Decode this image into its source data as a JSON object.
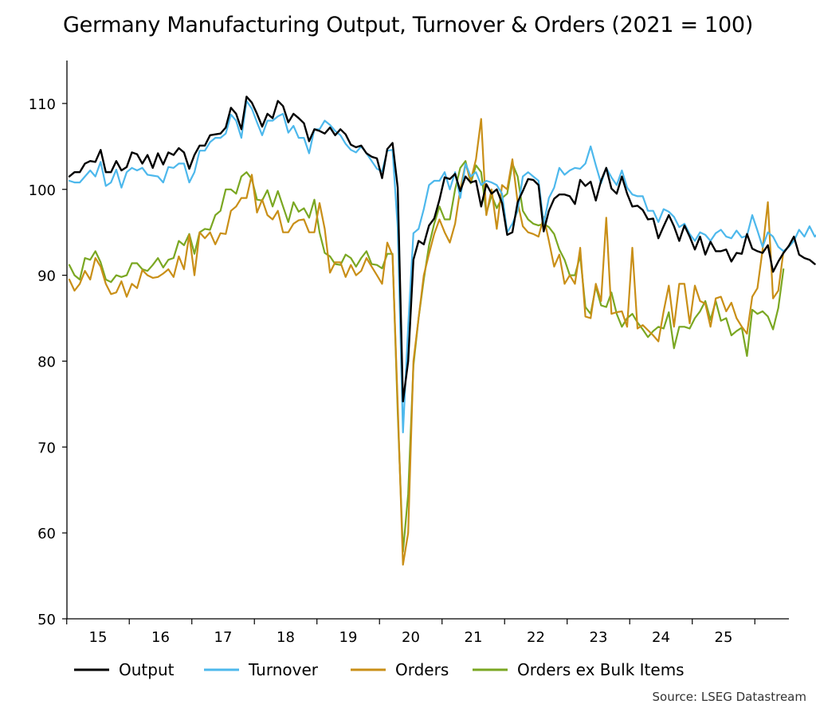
{
  "chart_data": {
    "type": "line",
    "title": "Germany Manufacturing Output, Turnover & Orders (2021 = 100)",
    "source": "Source: LSEG Datastream",
    "xlabel": "",
    "ylabel": "",
    "x_start": "2015-01",
    "frequency": "monthly",
    "ylim": [
      50,
      115
    ],
    "yticks": [
      50,
      60,
      70,
      80,
      90,
      100,
      110
    ],
    "xtick_labels": [
      "15",
      "16",
      "17",
      "18",
      "19",
      "20",
      "21",
      "22",
      "23",
      "24",
      "25"
    ],
    "grid": false,
    "legend_position": "bottom",
    "series": [
      {
        "name": "Output",
        "color": "#000000",
        "values": [
          101.5,
          102.0,
          102.0,
          103.0,
          103.3,
          103.2,
          104.6,
          102.0,
          102.0,
          103.3,
          102.2,
          102.6,
          104.3,
          104.1,
          103.0,
          104.0,
          102.5,
          104.2,
          102.9,
          104.3,
          104.0,
          104.8,
          104.3,
          102.4,
          104.0,
          105.1,
          105.1,
          106.3,
          106.4,
          106.5,
          107.2,
          109.5,
          108.8,
          107.0,
          110.8,
          110.1,
          108.8,
          107.3,
          108.8,
          108.3,
          110.3,
          109.7,
          107.8,
          108.8,
          108.3,
          107.7,
          105.6,
          107.0,
          106.8,
          106.5,
          107.2,
          106.3,
          107.0,
          106.4,
          105.2,
          104.9,
          105.1,
          104.2,
          103.8,
          103.6,
          101.3,
          104.7,
          105.4,
          100.2,
          75.3,
          80.0,
          91.8,
          94.0,
          93.6,
          95.8,
          96.6,
          98.8,
          101.4,
          101.2,
          101.8,
          99.8,
          101.5,
          100.8,
          101.0,
          98.0,
          100.6,
          99.5,
          100.0,
          98.4,
          94.7,
          95.0,
          98.5,
          99.8,
          101.2,
          101.1,
          100.5,
          95.1,
          97.5,
          98.9,
          99.4,
          99.4,
          99.2,
          98.3,
          101.1,
          100.4,
          100.9,
          98.7,
          101.0,
          102.5,
          100.1,
          99.5,
          101.5,
          99.5,
          98.0,
          98.1,
          97.6,
          96.5,
          96.6,
          94.3,
          95.7,
          97.0,
          95.7,
          94.0,
          95.8,
          94.5,
          93.0,
          94.5,
          92.4,
          93.9,
          92.8,
          92.8,
          93.0,
          91.6,
          92.6,
          92.5,
          94.8,
          93.1,
          92.8,
          92.6,
          93.5,
          90.4,
          91.6,
          92.6,
          93.4,
          94.5,
          92.4,
          92.0,
          91.8,
          91.3
        ]
      },
      {
        "name": "Turnover",
        "color": "#4db8ec",
        "values": [
          101.0,
          100.8,
          100.8,
          101.5,
          102.2,
          101.5,
          103.2,
          100.4,
          100.8,
          102.3,
          100.2,
          102.0,
          102.5,
          102.2,
          102.5,
          101.7,
          101.6,
          101.5,
          100.8,
          102.6,
          102.5,
          103.0,
          103.0,
          100.8,
          102.0,
          104.5,
          104.5,
          105.5,
          106.0,
          106.0,
          106.5,
          108.7,
          108.0,
          106.0,
          110.3,
          109.4,
          107.8,
          106.3,
          108.0,
          108.0,
          108.5,
          108.8,
          106.6,
          107.4,
          106.0,
          106.0,
          104.2,
          107.0,
          107.0,
          108.0,
          107.5,
          106.8,
          106.3,
          105.3,
          104.6,
          104.3,
          105.0,
          104.2,
          103.3,
          102.4,
          102.1,
          104.5,
          104.6,
          95.5,
          71.7,
          84.0,
          94.9,
          95.4,
          97.7,
          100.5,
          101.0,
          101.0,
          102.0,
          100.0,
          102.0,
          99.0,
          103.0,
          101.5,
          102.0,
          100.5,
          101.0,
          100.8,
          100.5,
          99.5,
          95.0,
          96.0,
          97.5,
          101.5,
          102.0,
          101.5,
          101.0,
          96.0,
          99.0,
          100.2,
          102.5,
          101.7,
          102.2,
          102.5,
          102.4,
          103.0,
          105.0,
          102.8,
          100.7,
          102.5,
          101.4,
          100.5,
          102.2,
          100.2,
          99.4,
          99.2,
          99.2,
          97.5,
          97.5,
          96.2,
          97.7,
          97.4,
          96.8,
          95.6,
          96.0,
          94.8,
          94.0,
          95.0,
          94.7,
          94.0,
          94.9,
          95.3,
          94.5,
          94.3,
          95.2,
          94.4,
          94.6,
          97.0,
          95.2,
          93.3,
          95.0,
          94.5,
          93.3,
          92.8,
          93.3,
          94.0,
          95.3,
          94.5,
          95.7,
          94.5,
          95.1
        ]
      },
      {
        "name": "Orders",
        "color": "#c98f17",
        "values": [
          89.5,
          88.2,
          89.0,
          90.5,
          89.5,
          92.0,
          91.0,
          89.0,
          87.8,
          88.0,
          89.3,
          87.5,
          89.0,
          88.5,
          90.6,
          90.0,
          89.7,
          89.8,
          90.2,
          90.7,
          89.8,
          92.2,
          90.7,
          94.7,
          90.0,
          95.0,
          94.3,
          95.0,
          93.6,
          94.9,
          94.8,
          97.5,
          98.0,
          99.0,
          99.0,
          101.7,
          97.3,
          98.8,
          97.0,
          96.5,
          97.5,
          95.0,
          95.0,
          96.0,
          96.4,
          96.5,
          95.0,
          95.0,
          98.4,
          95.4,
          90.3,
          91.5,
          91.5,
          89.8,
          91.2,
          90.0,
          90.5,
          92.0,
          91.0,
          90.0,
          89.0,
          93.8,
          92.3,
          75.0,
          56.3,
          60.0,
          80.0,
          85.0,
          90.0,
          92.5,
          94.8,
          96.5,
          95.0,
          93.8,
          96.0,
          100.0,
          103.0,
          101.0,
          103.5,
          108.2,
          97.0,
          100.0,
          95.4,
          100.5,
          100.0,
          103.5,
          98.5,
          95.7,
          95.0,
          94.8,
          94.5,
          96.8,
          94.0,
          91.0,
          92.4,
          89.0,
          90.0,
          89.0,
          93.2,
          85.2,
          85.0,
          89.0,
          87.0,
          96.7,
          85.5,
          85.7,
          85.8,
          84.0,
          93.2,
          83.8,
          84.2,
          83.6,
          83.0,
          82.3,
          85.8,
          88.8,
          84.0,
          89.0,
          89.0,
          84.4,
          88.8,
          87.0,
          86.7,
          84.0,
          87.3,
          87.5,
          85.8,
          86.8,
          85.0,
          84.0,
          83.2,
          87.5,
          88.5,
          93.0,
          98.5,
          87.3,
          88.2,
          92.8
        ]
      },
      {
        "name": "Orders ex Bulk Items",
        "color": "#7aa722",
        "values": [
          91.2,
          90.0,
          89.5,
          92.0,
          91.8,
          92.8,
          91.5,
          89.5,
          89.2,
          90.0,
          89.8,
          90.0,
          91.4,
          91.4,
          90.7,
          90.5,
          91.2,
          92.0,
          90.9,
          91.8,
          92.0,
          94.0,
          93.5,
          94.8,
          92.5,
          95.0,
          95.4,
          95.3,
          97.0,
          97.5,
          100.0,
          100.0,
          99.5,
          101.5,
          102.0,
          101.2,
          98.8,
          98.7,
          99.9,
          98.0,
          99.8,
          98.0,
          96.2,
          98.5,
          97.4,
          97.8,
          96.7,
          98.8,
          95.0,
          92.6,
          92.2,
          91.3,
          91.2,
          92.4,
          92.0,
          91.0,
          92.0,
          92.8,
          91.3,
          91.2,
          90.8,
          92.5,
          92.5,
          74.0,
          57.8,
          64.5,
          79.5,
          85.0,
          89.5,
          93.5,
          96.0,
          98.0,
          96.5,
          96.5,
          100.0,
          102.5,
          103.3,
          100.7,
          102.8,
          102.0,
          97.2,
          99.3,
          97.8,
          99.0,
          99.5,
          103.0,
          101.5,
          97.5,
          96.5,
          96.0,
          95.8,
          96.0,
          95.6,
          94.8,
          93.0,
          91.8,
          90.0,
          90.0,
          92.3,
          86.3,
          85.5,
          88.7,
          86.5,
          86.3,
          88.0,
          85.5,
          84.0,
          85.0,
          85.5,
          84.5,
          83.7,
          82.8,
          83.5,
          84.0,
          83.8,
          85.7,
          81.5,
          84.0,
          84.0,
          83.8,
          85.0,
          85.8,
          87.0,
          84.8,
          87.0,
          84.7,
          85.0,
          83.0,
          83.5,
          83.9,
          80.6,
          86.0,
          85.5,
          85.8,
          85.2,
          83.7,
          86.2,
          90.7
        ]
      }
    ]
  }
}
